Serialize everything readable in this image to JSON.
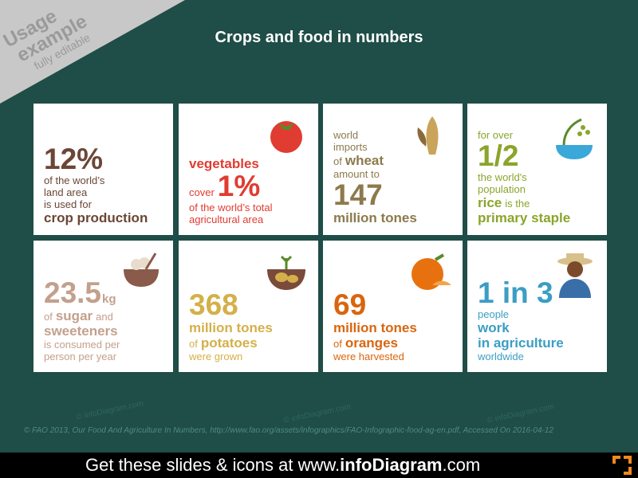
{
  "banner": {
    "line1": "Usage",
    "line2": "example",
    "line3": "fully editable"
  },
  "title": "Crops and food in numbers",
  "cards": [
    {
      "lines": [
        [
          "12%"
        ],
        [
          "of the world’s"
        ],
        [
          "land area"
        ],
        [
          "is used for"
        ],
        [
          "crop production"
        ]
      ]
    },
    {
      "lines": [
        [
          "vegetables"
        ],
        [
          "cover",
          "1%"
        ],
        [
          "of the world’s total"
        ],
        [
          "agricultural area"
        ]
      ]
    },
    {
      "lines": [
        [
          "world"
        ],
        [
          "imports"
        ],
        [
          "of",
          "wheat"
        ],
        [
          "amount to"
        ],
        [
          "147"
        ],
        [
          "million tones"
        ]
      ]
    },
    {
      "lines": [
        [
          "for over"
        ],
        [
          "1/2"
        ],
        [
          "the world's"
        ],
        [
          "population"
        ],
        [
          "rice",
          "is the"
        ],
        [
          "primary staple"
        ]
      ]
    },
    {
      "lines": [
        [
          "23.5",
          "kg"
        ],
        [
          "of",
          "sugar",
          "and"
        ],
        [
          "sweeteners"
        ],
        [
          "is consumed per"
        ],
        [
          "person per year"
        ]
      ]
    },
    {
      "lines": [
        [
          "368"
        ],
        [
          "million tones"
        ],
        [
          "of",
          "potatoes"
        ],
        [
          "were grown"
        ]
      ]
    },
    {
      "lines": [
        [
          "69"
        ],
        [
          "million tones"
        ],
        [
          "of",
          "oranges"
        ],
        [
          "were harvested"
        ]
      ]
    },
    {
      "lines": [
        [
          "1 in 3"
        ],
        [
          "people"
        ],
        [
          "work"
        ],
        [
          "in agriculture"
        ],
        [
          "worldwide"
        ]
      ]
    }
  ],
  "watermark": "© infoDiagram.com",
  "source": "© FAO 2013, Our Food And Agriculture In Numbers, http://www.fao.org/assets/infographics/FAO-Infographic-food-ag-en.pdf, Accessed On 2016-04-12",
  "footer": [
    "Get these slides & icons at www.",
    "infoDiagram",
    ".com"
  ]
}
